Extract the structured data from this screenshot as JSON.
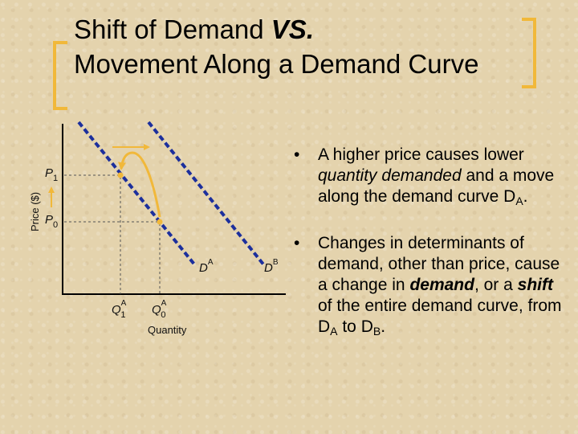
{
  "title": {
    "line1_prefix": "Shift of Demand ",
    "line1_vs": "VS.",
    "line2": "Movement Along a Demand Curve"
  },
  "diagram": {
    "y_axis_label": "Price ($)",
    "x_axis_label": "Quantity",
    "p1_label": "P",
    "p1_sub": "1",
    "p0_label": "P",
    "p0_sub": "0",
    "q1_label": "Q",
    "q1_sub": "1",
    "q1_sup": "A",
    "q0_label": "Q",
    "q0_sub": "0",
    "q0_sup": "A",
    "da_label": "D",
    "da_sup": "A",
    "db_label": "D",
    "db_sup": "B",
    "colors": {
      "demand_curve": "#1c2f9c",
      "arrow": "#f1b83a",
      "point": "#f1b83a",
      "dashed": "#555555"
    }
  },
  "bullets": {
    "b1_text1": "A higher price causes lower ",
    "b1_em": "quantity demanded",
    "b1_text2": " and a move along the demand curve D",
    "b1_sub": "A",
    "b1_end": ".",
    "b2_text1": "Changes in determinants of demand, other than price, cause a change in ",
    "b2_em1": "demand",
    "b2_text2": ", or a ",
    "b2_em2": "shift",
    "b2_text3": " of the entire demand curve, from D",
    "b2_sub1": "A",
    "b2_text4": " to D",
    "b2_sub2": "B",
    "b2_end": "."
  }
}
